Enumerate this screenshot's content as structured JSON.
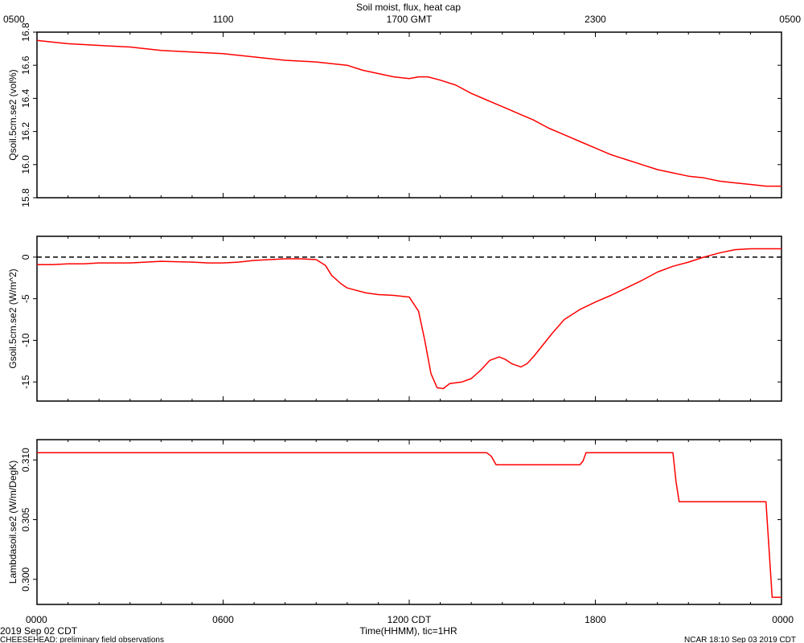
{
  "title": "Soil moist, flux, heat cap",
  "top_axis": {
    "tick_labels": [
      "0500",
      "1100",
      "1700 GMT",
      "2300",
      "0500"
    ]
  },
  "bottom_axis": {
    "tick_labels": [
      "0000",
      "0600",
      "1200 CDT",
      "1800",
      "0000"
    ],
    "xlabel": "Time(HHMM), tic=1HR",
    "date_label": "2019 Sep 02 CDT"
  },
  "footer": {
    "left": "CHEESEHEAD: preliminary field observations",
    "right": "NCAR 18:10 Sep 03 2019 CDT"
  },
  "chart_data": [
    {
      "type": "line",
      "ylabel": "Qsoil.5cm.se2 (vol%)",
      "ylim": [
        15.8,
        16.8
      ],
      "yticks": [
        15.8,
        16.0,
        16.2,
        16.4,
        16.6,
        16.8
      ],
      "ytick_labels": [
        "15.8",
        "16.0",
        "16.2",
        "16.4",
        "16.6",
        "16.8"
      ],
      "xlim": [
        0,
        24
      ],
      "series": [
        {
          "color": "#ff0000",
          "x": [
            0,
            0.5,
            1,
            2,
            3,
            4,
            5,
            6,
            7,
            8,
            9,
            10,
            10.5,
            11,
            11.5,
            12,
            12.3,
            12.6,
            13,
            13.5,
            14,
            14.5,
            15,
            15.5,
            16,
            16.5,
            17,
            17.5,
            18,
            18.5,
            19,
            19.5,
            20,
            20.5,
            21,
            21.5,
            22,
            22.5,
            23,
            23.5,
            24
          ],
          "y": [
            16.75,
            16.74,
            16.73,
            16.72,
            16.71,
            16.69,
            16.68,
            16.67,
            16.65,
            16.63,
            16.62,
            16.6,
            16.57,
            16.55,
            16.53,
            16.52,
            16.53,
            16.53,
            16.51,
            16.48,
            16.43,
            16.39,
            16.35,
            16.31,
            16.27,
            16.22,
            16.18,
            16.14,
            16.1,
            16.06,
            16.03,
            16.0,
            15.97,
            15.95,
            15.93,
            15.92,
            15.9,
            15.89,
            15.88,
            15.87,
            15.87
          ]
        }
      ]
    },
    {
      "type": "line",
      "ylabel": "Gsoil.5cm.se2 (W/m^2)",
      "ylim": [
        -17.3,
        2.5
      ],
      "yticks": [
        -15,
        -10,
        -5,
        0
      ],
      "ytick_labels": [
        "-15",
        "-10",
        "-5",
        "0"
      ],
      "reference_line": 0,
      "xlim": [
        0,
        24
      ],
      "series": [
        {
          "color": "#ff0000",
          "x": [
            0,
            0.5,
            1,
            1.5,
            2,
            3,
            4,
            5,
            5.5,
            6,
            6.5,
            7,
            7.5,
            8,
            8.5,
            9,
            9.3,
            9.5,
            9.8,
            10,
            10.3,
            10.6,
            11,
            11.5,
            12,
            12.3,
            12.5,
            12.7,
            12.9,
            13.1,
            13.3,
            13.5,
            13.7,
            14,
            14.3,
            14.6,
            14.9,
            15.1,
            15.3,
            15.6,
            15.8,
            16,
            16.3,
            16.6,
            17,
            17.5,
            18,
            18.5,
            19,
            19.5,
            20,
            20.5,
            21,
            21.5,
            22,
            22.5,
            23,
            23.5,
            24
          ],
          "y": [
            -0.9,
            -0.9,
            -0.8,
            -0.8,
            -0.7,
            -0.7,
            -0.5,
            -0.6,
            -0.7,
            -0.7,
            -0.6,
            -0.4,
            -0.3,
            -0.2,
            -0.2,
            -0.3,
            -1.0,
            -2.2,
            -3.2,
            -3.7,
            -4.0,
            -4.3,
            -4.5,
            -4.6,
            -4.8,
            -6.5,
            -10.0,
            -14.0,
            -15.7,
            -15.8,
            -15.2,
            -15.1,
            -15.0,
            -14.6,
            -13.6,
            -12.4,
            -12.0,
            -12.3,
            -12.8,
            -13.2,
            -12.8,
            -12.0,
            -10.6,
            -9.2,
            -7.5,
            -6.3,
            -5.4,
            -4.6,
            -3.7,
            -2.8,
            -1.8,
            -1.1,
            -0.6,
            0.0,
            0.5,
            0.9,
            1.0,
            1.0,
            1.0
          ]
        }
      ]
    },
    {
      "type": "line",
      "ylabel": "Lambdasoil.se2 (W/m/DegK)",
      "ylim": [
        0.2979,
        0.3117
      ],
      "yticks": [
        0.3,
        0.305,
        0.31
      ],
      "ytick_labels": [
        "0.300",
        "0.305",
        "0.310"
      ],
      "xlim": [
        0,
        24
      ],
      "series": [
        {
          "color": "#ff0000",
          "x": [
            0,
            14.5,
            14.65,
            14.8,
            17.5,
            17.6,
            17.7,
            20.5,
            20.6,
            20.7,
            23.5,
            23.7,
            24
          ],
          "y": [
            0.3106,
            0.3106,
            0.3103,
            0.3096,
            0.3096,
            0.3099,
            0.3106,
            0.3106,
            0.3082,
            0.3065,
            0.3065,
            0.2985,
            0.2985
          ]
        }
      ]
    }
  ]
}
